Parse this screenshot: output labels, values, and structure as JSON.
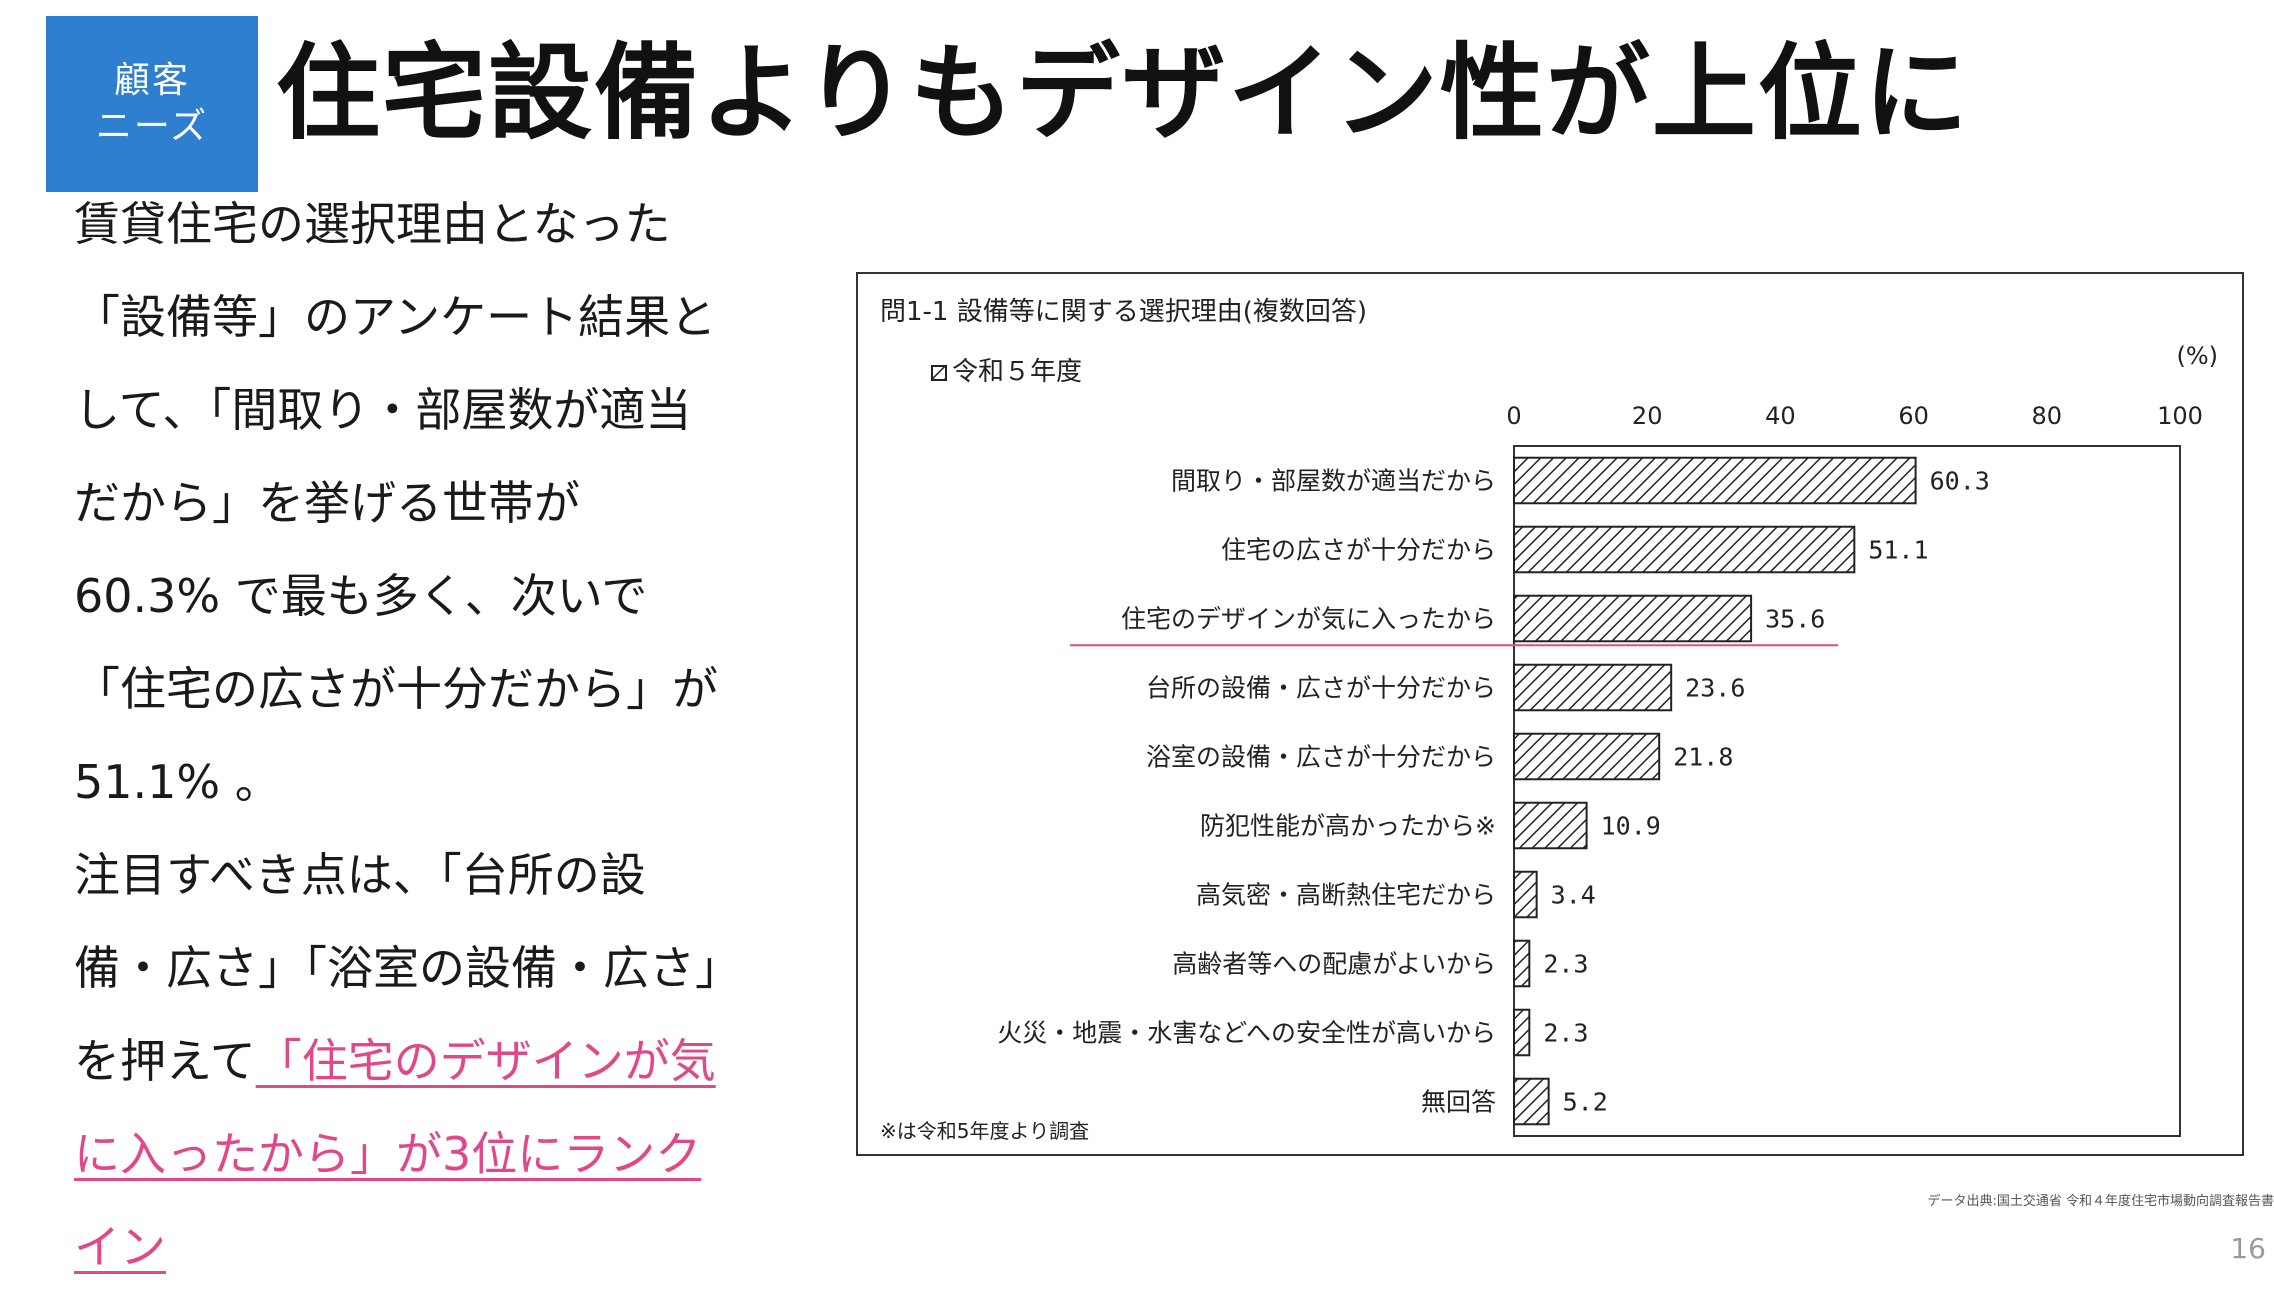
{
  "tag": {
    "line1": "顧客",
    "line2": "ニーズ"
  },
  "slide_title": "住宅設備よりもデザイン性が上位に",
  "body": {
    "part1": "賃貸住宅の選択理由となった「設備等」のアンケート結果として、「間取り・部屋数が適当だから」を挙げる世帯が 60.3% で最も多く、次いで「住宅の広さが十分だから」が 51.1% 。",
    "part2": "注目すべき点は、「台所の設備・広さ」「浴室の設備・広さ」を押えて",
    "highlight": "「住宅のデザインが気に入ったから」が3位にランクイン"
  },
  "chart_data": {
    "type": "bar",
    "orientation": "horizontal",
    "title": "問1-1 設備等に関する選択理由(複数回答)",
    "unit": "(%)",
    "legend": "令和５年度",
    "footnote": "※は令和5年度より調査",
    "xlim": [
      0,
      100
    ],
    "xticks": [
      0,
      20,
      40,
      60,
      80,
      100
    ],
    "categories": [
      "間取り・部屋数が適当だから",
      "住宅の広さが十分だから",
      "住宅のデザインが気に入ったから",
      "台所の設備・広さが十分だから",
      "浴室の設備・広さが十分だから",
      "防犯性能が高かったから※",
      "高気密・高断熱住宅だから",
      "高齢者等への配慮がよいから",
      "火災・地震・水害などへの安全性が高いから",
      "無回答"
    ],
    "values": [
      60.3,
      51.1,
      35.6,
      23.6,
      21.8,
      10.9,
      3.4,
      2.3,
      2.3,
      5.2
    ],
    "value_labels": [
      "60.3",
      "51.1",
      "35.6",
      "23.6",
      "21.8",
      "10.9",
      "3.4",
      "2.3",
      "2.3",
      "5.2"
    ],
    "highlighted_category_index": 2,
    "highlight_color": "#e0488a"
  },
  "source": "データ出典:国土交通省 令和４年度住宅市場動向調査報告書",
  "page_number": "16"
}
